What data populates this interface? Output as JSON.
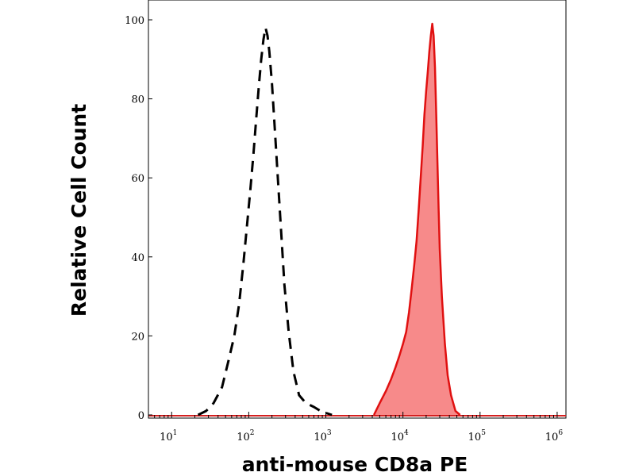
{
  "chart_data": {
    "type": "area",
    "xlabel": "anti-mouse CD8a PE",
    "ylabel": "Relative Cell Count",
    "x_scale": "log",
    "xlim": [
      5,
      1300000
    ],
    "ylim": [
      0,
      100
    ],
    "x_tick_base": "10",
    "x_ticks": [
      {
        "exp": "1",
        "value": 10
      },
      {
        "exp": "2",
        "value": 100
      },
      {
        "exp": "3",
        "value": 1000
      },
      {
        "exp": "4",
        "value": 10000
      },
      {
        "exp": "5",
        "value": 100000
      },
      {
        "exp": "6",
        "value": 1000000
      }
    ],
    "y_ticks": [
      {
        "label": "0",
        "value": 0
      },
      {
        "label": "20",
        "value": 20
      },
      {
        "label": "40",
        "value": 40
      },
      {
        "label": "60",
        "value": 60
      },
      {
        "label": "80",
        "value": 80
      },
      {
        "label": "100",
        "value": 100
      }
    ],
    "grid": false,
    "series": [
      {
        "key": "control",
        "style": "dashed-line",
        "color": "#000000",
        "points": [
          [
            22,
            0
          ],
          [
            28,
            1
          ],
          [
            35,
            3
          ],
          [
            45,
            7
          ],
          [
            55,
            14
          ],
          [
            65,
            20
          ],
          [
            75,
            28
          ],
          [
            85,
            38
          ],
          [
            95,
            48
          ],
          [
            105,
            57
          ],
          [
            115,
            66
          ],
          [
            125,
            75
          ],
          [
            135,
            83
          ],
          [
            145,
            90
          ],
          [
            155,
            95
          ],
          [
            165,
            98
          ],
          [
            175,
            96
          ],
          [
            185,
            92
          ],
          [
            200,
            84
          ],
          [
            215,
            74
          ],
          [
            235,
            62
          ],
          [
            260,
            48
          ],
          [
            290,
            33
          ],
          [
            330,
            21
          ],
          [
            380,
            11
          ],
          [
            450,
            5
          ],
          [
            550,
            3
          ],
          [
            700,
            2
          ],
          [
            850,
            1
          ],
          [
            1000,
            0.5
          ],
          [
            1200,
            0
          ]
        ]
      },
      {
        "key": "stained",
        "style": "filled-area",
        "color": "#e01010",
        "fill": "#f78a8a",
        "points": [
          [
            4200,
            0
          ],
          [
            5000,
            3
          ],
          [
            6000,
            6
          ],
          [
            7000,
            9
          ],
          [
            8000,
            12
          ],
          [
            9000,
            15
          ],
          [
            10000,
            18
          ],
          [
            11000,
            21
          ],
          [
            12000,
            26
          ],
          [
            13000,
            32
          ],
          [
            14000,
            38
          ],
          [
            15000,
            44
          ],
          [
            16000,
            52
          ],
          [
            17000,
            60
          ],
          [
            18000,
            68
          ],
          [
            19000,
            76
          ],
          [
            20000,
            82
          ],
          [
            21000,
            87
          ],
          [
            22000,
            92
          ],
          [
            23000,
            96
          ],
          [
            24000,
            99
          ],
          [
            25000,
            96
          ],
          [
            26000,
            88
          ],
          [
            27000,
            76
          ],
          [
            28000,
            64
          ],
          [
            29000,
            52
          ],
          [
            30000,
            42
          ],
          [
            32000,
            30
          ],
          [
            35000,
            18
          ],
          [
            38000,
            10
          ],
          [
            42000,
            5
          ],
          [
            48000,
            1
          ],
          [
            55000,
            0
          ]
        ]
      }
    ]
  }
}
